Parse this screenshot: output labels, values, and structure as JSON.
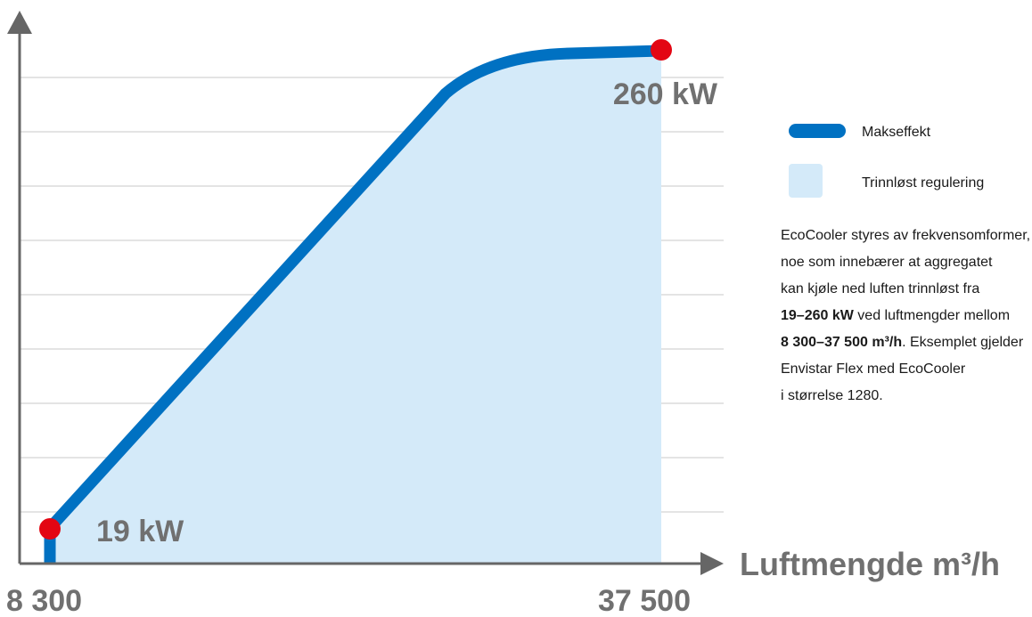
{
  "chart_data": {
    "type": "area",
    "x": [
      8300,
      37500
    ],
    "x_tick_labels": [
      "8 300",
      "37 500"
    ],
    "xlabel": "Luftmengde m³/h",
    "series": [
      {
        "name": "Makseffekt",
        "color": "#0071C2",
        "start_label": "19 kW",
        "end_label": "260 kW",
        "start_value": 19,
        "end_value": 260
      }
    ],
    "fill": {
      "name": "Trinnløst regulering",
      "color": "#D4EAF9"
    },
    "grid": true,
    "legend_position": "right",
    "point_color": "#E30613"
  },
  "legend": {
    "max_label": "Makseffekt",
    "range_label": "Trinnløst regulering"
  },
  "description": {
    "line1": "EcoCooler styres av frekvensomformer,",
    "line2": "noe som innebærer at aggregatet",
    "line3": "kan kjøle ned luften trinnløst fra",
    "line4_bold": "19–260 kW",
    "line4_rest": " ved luftmengder mellom",
    "line5_bold": "8 300–37 500 m³/h",
    "line5_rest": ". Eksemplet gjelder",
    "line6": "Envistar Flex med EcoCooler",
    "line7": "i størrelse 1280."
  }
}
